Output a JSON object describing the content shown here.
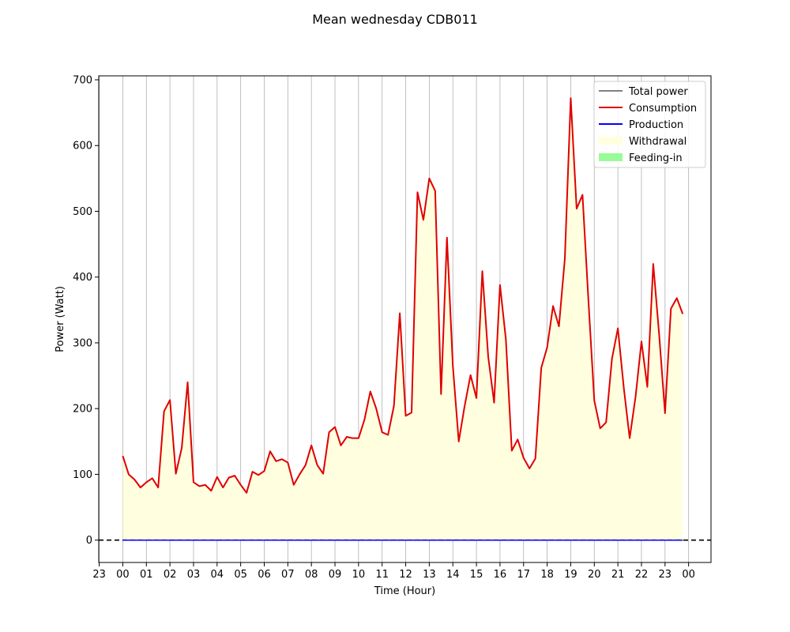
{
  "chart_data": {
    "type": "line",
    "title": "Mean wednesday CDB011",
    "xlabel": "Time (Hour)",
    "ylabel": "Power (Watt)",
    "x_tick_labels": [
      "23",
      "00",
      "01",
      "02",
      "03",
      "04",
      "05",
      "06",
      "07",
      "08",
      "09",
      "10",
      "11",
      "12",
      "13",
      "14",
      "15",
      "16",
      "17",
      "18",
      "19",
      "20",
      "21",
      "22",
      "23",
      "00"
    ],
    "y_ticks": [
      0,
      100,
      200,
      300,
      400,
      500,
      600,
      700
    ],
    "ylim": [
      -34,
      706
    ],
    "xlim_hours": [
      -1.02,
      24.95
    ],
    "grid": "vertical",
    "legend_position": "top-right",
    "zero_line": "black dashed",
    "legend": [
      {
        "label": "Total power",
        "color": "#808080",
        "kind": "line"
      },
      {
        "label": "Consumption",
        "color": "#e00000",
        "kind": "line"
      },
      {
        "label": "Production",
        "color": "#0000ff",
        "kind": "line"
      },
      {
        "label": "Withdrawal",
        "color": "#ffffe0",
        "kind": "patch"
      },
      {
        "label": "Feeding-in",
        "color": "#98fb98",
        "kind": "patch"
      }
    ],
    "x_step_hours": 0.25,
    "series": [
      {
        "name": "Consumption",
        "color": "#e00000",
        "x_start_hour": 0,
        "values": [
          128,
          100,
          92,
          80,
          88,
          94,
          80,
          196,
          213,
          101,
          140,
          240,
          88,
          82,
          84,
          75,
          96,
          80,
          95,
          98,
          84,
          72,
          104,
          99,
          105,
          135,
          120,
          123,
          118,
          84,
          100,
          114,
          144,
          114,
          101,
          164,
          172,
          144,
          157,
          155,
          155,
          183,
          226,
          200,
          164,
          160,
          204,
          345,
          189,
          194,
          529,
          487,
          550,
          531,
          222,
          460,
          265,
          150,
          204,
          251,
          216,
          409,
          279,
          209,
          388,
          305,
          136,
          153,
          125,
          109,
          124,
          262,
          293,
          356,
          325,
          428,
          672,
          504,
          525,
          365,
          212,
          170,
          179,
          276,
          322,
          232,
          155,
          218,
          302,
          233,
          420,
          313,
          193,
          352,
          368,
          344
        ]
      },
      {
        "name": "Production",
        "color": "#0000ff",
        "x_start_hour": 0,
        "constant": 0
      }
    ]
  }
}
